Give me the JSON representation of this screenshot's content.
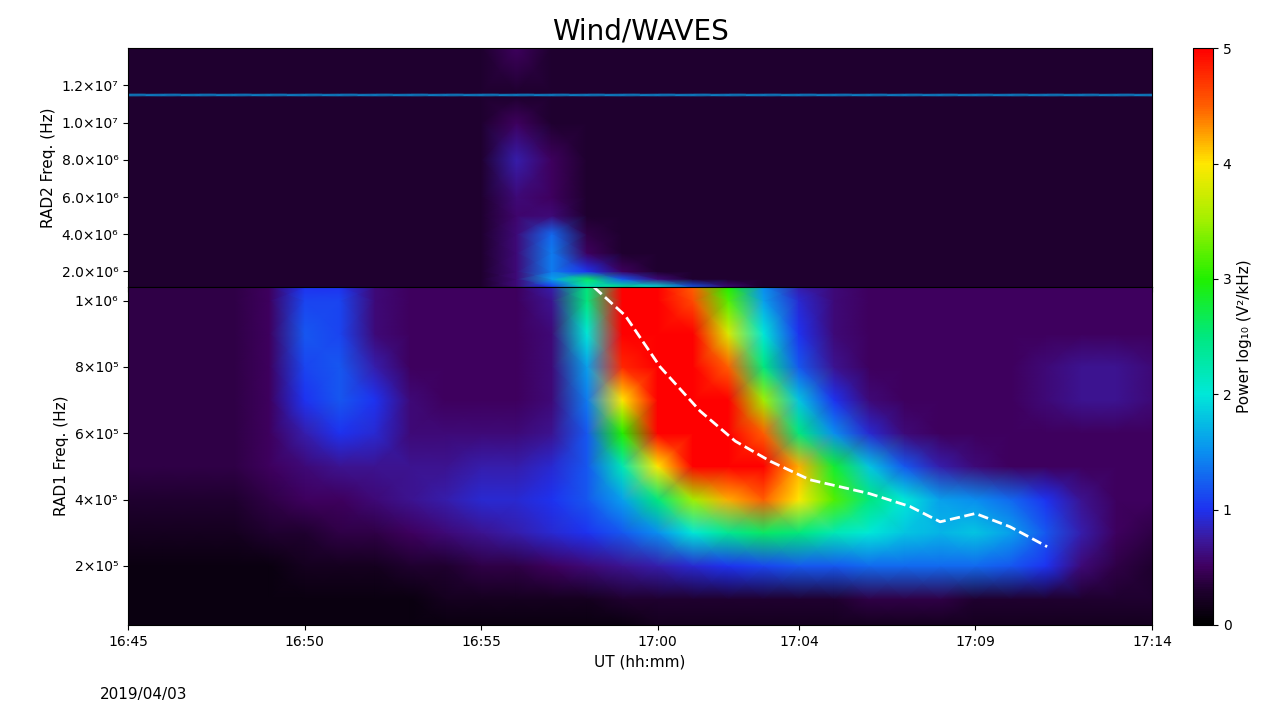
{
  "chart_data": {
    "type": "heatmap",
    "title": "Wind/WAVES",
    "x_label": "UT (hh:mm)",
    "annotations": [
      "2019/04/03"
    ],
    "xlim": [
      1005,
      1034
    ],
    "xticks": [
      {
        "value": 1005,
        "label": "16:45"
      },
      {
        "value": 1010,
        "label": "16:50"
      },
      {
        "value": 1015,
        "label": "16:55"
      },
      {
        "value": 1020,
        "label": "17:00"
      },
      {
        "value": 1024,
        "label": "17:04"
      },
      {
        "value": 1029,
        "label": "17:09"
      },
      {
        "value": 1034,
        "label": "17:14"
      }
    ],
    "x": [
      1005,
      1006,
      1007,
      1008,
      1009,
      1010,
      1011,
      1012,
      1013,
      1014,
      1015,
      1016,
      1017,
      1018,
      1019,
      1020,
      1021,
      1022,
      1023,
      1024,
      1025,
      1026,
      1027,
      1028,
      1029,
      1030,
      1031,
      1032,
      1033,
      1034
    ],
    "colorbar": {
      "label": "Power log₁₀ (V²/kHz)",
      "range": [
        0,
        5
      ],
      "ticks": [
        0,
        1,
        2,
        3,
        4,
        5
      ]
    },
    "panels": [
      {
        "y_label": "RAD2 Freq. (Hz)",
        "ylim": [
          1150000,
          14000000
        ],
        "yticks": [
          {
            "value": 2000000,
            "label": "2.0×10⁶"
          },
          {
            "value": 4000000,
            "label": "4.0×10⁶"
          },
          {
            "value": 6000000,
            "label": "6.0×10⁶"
          },
          {
            "value": 8000000,
            "label": "8.0×10⁶"
          },
          {
            "value": 10000000,
            "label": "1.0×10⁷"
          },
          {
            "value": 12000000,
            "label": "1.2×10⁷"
          }
        ],
        "y": [
          1150000,
          1600000,
          2000000,
          3000000,
          4000000,
          5000000,
          6000000,
          8000000,
          10000000,
          11400000,
          11500000,
          11600000,
          14000000
        ],
        "cells": [
          [
            0.3,
            0.3,
            0.3,
            0.3,
            0.3,
            0.3,
            0.3,
            0.3,
            0.3,
            0.3,
            0.3,
            0.6,
            1.0,
            2.2,
            2.4,
            2.0,
            1.2,
            0.6,
            0.3,
            0.3,
            0.3,
            0.3,
            0.3,
            0.3,
            0.3,
            0.3,
            0.3,
            0.3,
            0.3,
            0.3
          ],
          [
            0.3,
            0.3,
            0.3,
            0.3,
            0.3,
            0.3,
            0.3,
            0.3,
            0.3,
            0.3,
            0.3,
            0.6,
            1.6,
            2.6,
            1.2,
            0.6,
            0.3,
            0.3,
            0.3,
            0.3,
            0.3,
            0.3,
            0.3,
            0.3,
            0.3,
            0.3,
            0.3,
            0.3,
            0.3,
            0.3
          ],
          [
            0.3,
            0.3,
            0.3,
            0.3,
            0.3,
            0.3,
            0.3,
            0.3,
            0.3,
            0.3,
            0.3,
            0.6,
            1.4,
            1.0,
            0.5,
            0.3,
            0.3,
            0.3,
            0.3,
            0.3,
            0.3,
            0.3,
            0.3,
            0.3,
            0.3,
            0.3,
            0.3,
            0.3,
            0.3,
            0.3
          ],
          [
            0.3,
            0.3,
            0.3,
            0.3,
            0.3,
            0.3,
            0.3,
            0.3,
            0.3,
            0.3,
            0.3,
            0.6,
            1.4,
            0.5,
            0.3,
            0.3,
            0.3,
            0.3,
            0.3,
            0.3,
            0.3,
            0.3,
            0.3,
            0.3,
            0.3,
            0.3,
            0.3,
            0.3,
            0.3,
            0.3
          ],
          [
            0.3,
            0.3,
            0.3,
            0.3,
            0.3,
            0.3,
            0.3,
            0.3,
            0.3,
            0.3,
            0.3,
            0.6,
            1.3,
            0.4,
            0.3,
            0.3,
            0.3,
            0.3,
            0.3,
            0.3,
            0.3,
            0.3,
            0.3,
            0.3,
            0.3,
            0.3,
            0.3,
            0.3,
            0.3,
            0.3
          ],
          [
            0.3,
            0.3,
            0.3,
            0.3,
            0.3,
            0.3,
            0.3,
            0.3,
            0.3,
            0.3,
            0.3,
            0.55,
            0.6,
            0.3,
            0.3,
            0.3,
            0.3,
            0.3,
            0.3,
            0.3,
            0.3,
            0.3,
            0.3,
            0.3,
            0.3,
            0.3,
            0.3,
            0.3,
            0.3,
            0.3
          ],
          [
            0.3,
            0.3,
            0.3,
            0.3,
            0.3,
            0.3,
            0.3,
            0.3,
            0.3,
            0.3,
            0.3,
            0.6,
            0.5,
            0.3,
            0.3,
            0.3,
            0.3,
            0.3,
            0.3,
            0.3,
            0.3,
            0.3,
            0.3,
            0.3,
            0.3,
            0.3,
            0.3,
            0.3,
            0.3,
            0.3
          ],
          [
            0.3,
            0.3,
            0.3,
            0.3,
            0.3,
            0.3,
            0.3,
            0.3,
            0.3,
            0.3,
            0.3,
            0.8,
            0.5,
            0.3,
            0.3,
            0.3,
            0.3,
            0.3,
            0.3,
            0.3,
            0.3,
            0.3,
            0.3,
            0.3,
            0.3,
            0.3,
            0.3,
            0.3,
            0.3,
            0.3
          ],
          [
            0.3,
            0.3,
            0.3,
            0.3,
            0.3,
            0.3,
            0.3,
            0.3,
            0.3,
            0.3,
            0.3,
            0.5,
            0.3,
            0.3,
            0.3,
            0.3,
            0.3,
            0.3,
            0.3,
            0.3,
            0.3,
            0.3,
            0.3,
            0.3,
            0.3,
            0.3,
            0.3,
            0.3,
            0.3,
            0.3
          ],
          [
            0.3,
            0.3,
            0.3,
            0.3,
            0.3,
            0.3,
            0.3,
            0.3,
            0.3,
            0.3,
            0.3,
            0.3,
            0.3,
            0.3,
            0.3,
            0.3,
            0.3,
            0.3,
            0.3,
            0.3,
            0.3,
            0.3,
            0.3,
            0.3,
            0.3,
            0.3,
            0.3,
            0.3,
            0.3,
            0.3
          ],
          [
            1.6,
            1.6,
            1.6,
            1.6,
            1.6,
            1.6,
            1.6,
            1.6,
            1.6,
            1.6,
            1.6,
            1.6,
            1.6,
            1.6,
            1.6,
            1.6,
            1.6,
            1.6,
            1.6,
            1.6,
            1.6,
            1.6,
            1.6,
            1.6,
            1.6,
            1.6,
            1.6,
            1.6,
            1.6,
            1.6
          ],
          [
            0.3,
            0.3,
            0.3,
            0.3,
            0.3,
            0.3,
            0.3,
            0.3,
            0.3,
            0.3,
            0.3,
            0.3,
            0.3,
            0.3,
            0.3,
            0.3,
            0.3,
            0.3,
            0.3,
            0.3,
            0.3,
            0.3,
            0.3,
            0.3,
            0.3,
            0.3,
            0.3,
            0.3,
            0.3,
            0.3
          ],
          [
            0.3,
            0.3,
            0.3,
            0.3,
            0.3,
            0.3,
            0.3,
            0.3,
            0.3,
            0.3,
            0.3,
            0.5,
            0.3,
            0.3,
            0.3,
            0.3,
            0.3,
            0.3,
            0.3,
            0.3,
            0.3,
            0.3,
            0.3,
            0.3,
            0.3,
            0.3,
            0.3,
            0.3,
            0.3,
            0.3
          ]
        ]
      },
      {
        "y_label": "RAD1 Freq. (Hz)",
        "ylim": [
          22000,
          1040000
        ],
        "yticks": [
          {
            "value": 200000,
            "label": "2×10⁵"
          },
          {
            "value": 400000,
            "label": "4×10⁵"
          },
          {
            "value": 600000,
            "label": "6×10⁵"
          },
          {
            "value": 800000,
            "label": "8×10⁵"
          },
          {
            "value": 1000000,
            "label": "1×10⁶"
          }
        ],
        "y": [
          22000,
          100000,
          200000,
          300000,
          400000,
          500000,
          600000,
          700000,
          800000,
          900000,
          1000000,
          1040000
        ],
        "cells": [
          [
            0.1,
            0.1,
            0.1,
            0.1,
            0.1,
            0.1,
            0.1,
            0.1,
            0.1,
            0.1,
            0.1,
            0.1,
            0.1,
            0.1,
            0.1,
            0.2,
            0.2,
            0.2,
            0.2,
            0.2,
            0.2,
            0.2,
            0.2,
            0.2,
            0.2,
            0.2,
            0.2,
            0.2,
            0.2,
            0.2
          ],
          [
            0.1,
            0.1,
            0.1,
            0.1,
            0.1,
            0.1,
            0.1,
            0.1,
            0.1,
            0.2,
            0.2,
            0.2,
            0.2,
            0.2,
            0.3,
            0.3,
            0.3,
            0.3,
            0.3,
            0.3,
            0.3,
            0.4,
            0.4,
            0.4,
            0.3,
            0.3,
            0.3,
            0.3,
            0.3,
            0.3
          ],
          [
            0.1,
            0.1,
            0.1,
            0.1,
            0.1,
            0.2,
            0.2,
            0.2,
            0.3,
            0.3,
            0.4,
            0.4,
            0.5,
            0.6,
            0.7,
            0.8,
            0.9,
            1.0,
            1.1,
            1.2,
            1.2,
            1.3,
            1.3,
            1.3,
            1.3,
            1.2,
            1.0,
            0.6,
            0.4,
            0.3
          ],
          [
            0.2,
            0.2,
            0.2,
            0.2,
            0.3,
            0.3,
            0.4,
            0.4,
            0.5,
            0.6,
            0.7,
            0.8,
            0.9,
            1.0,
            1.2,
            1.5,
            2.0,
            2.4,
            2.6,
            2.5,
            2.2,
            2.0,
            1.8,
            1.7,
            1.8,
            1.6,
            1.2,
            0.8,
            0.5,
            0.4
          ],
          [
            0.3,
            0.3,
            0.3,
            0.3,
            0.4,
            0.5,
            0.5,
            0.6,
            0.7,
            0.8,
            0.9,
            0.9,
            1.0,
            1.2,
            1.6,
            2.5,
            3.5,
            4.2,
            4.5,
            4.0,
            3.2,
            2.5,
            2.0,
            1.6,
            1.5,
            1.3,
            1.0,
            0.7,
            0.5,
            0.5
          ],
          [
            0.4,
            0.4,
            0.4,
            0.4,
            0.5,
            0.6,
            0.7,
            0.7,
            0.7,
            0.7,
            0.8,
            0.8,
            0.9,
            1.2,
            2.2,
            4.0,
            5.0,
            5.0,
            5.0,
            4.2,
            2.8,
            1.8,
            1.2,
            0.8,
            0.6,
            0.5,
            0.5,
            0.5,
            0.5,
            0.5
          ],
          [
            0.4,
            0.4,
            0.4,
            0.4,
            0.5,
            0.8,
            1.0,
            0.9,
            0.6,
            0.6,
            0.6,
            0.6,
            0.7,
            1.2,
            3.0,
            5.0,
            5.0,
            5.0,
            4.5,
            2.5,
            1.5,
            0.9,
            0.6,
            0.5,
            0.5,
            0.5,
            0.5,
            0.5,
            0.5,
            0.5
          ],
          [
            0.4,
            0.4,
            0.4,
            0.4,
            0.5,
            1.0,
            1.2,
            1.0,
            0.6,
            0.5,
            0.5,
            0.5,
            0.6,
            1.4,
            4.0,
            5.0,
            5.0,
            5.0,
            3.5,
            1.8,
            1.0,
            0.6,
            0.5,
            0.5,
            0.5,
            0.5,
            0.6,
            0.7,
            0.7,
            0.6
          ],
          [
            0.4,
            0.4,
            0.4,
            0.4,
            0.5,
            1.1,
            1.2,
            0.8,
            0.5,
            0.5,
            0.5,
            0.5,
            0.6,
            1.6,
            4.8,
            5.0,
            5.0,
            4.5,
            2.5,
            1.2,
            0.7,
            0.5,
            0.5,
            0.5,
            0.5,
            0.5,
            0.6,
            0.7,
            0.7,
            0.6
          ],
          [
            0.4,
            0.4,
            0.4,
            0.4,
            0.5,
            1.2,
            1.1,
            0.6,
            0.5,
            0.5,
            0.5,
            0.5,
            0.6,
            2.0,
            5.0,
            5.0,
            5.0,
            3.8,
            2.0,
            1.0,
            0.6,
            0.5,
            0.5,
            0.5,
            0.5,
            0.5,
            0.5,
            0.5,
            0.5,
            0.5
          ],
          [
            0.4,
            0.4,
            0.4,
            0.4,
            0.5,
            1.1,
            1.1,
            0.6,
            0.5,
            0.5,
            0.5,
            0.5,
            0.7,
            2.5,
            5.0,
            5.0,
            4.6,
            3.2,
            1.6,
            0.9,
            0.6,
            0.5,
            0.5,
            0.5,
            0.5,
            0.5,
            0.5,
            0.5,
            0.5,
            0.5
          ],
          [
            0.4,
            0.4,
            0.4,
            0.4,
            0.5,
            1.0,
            1.0,
            0.6,
            0.5,
            0.5,
            0.5,
            0.5,
            0.8,
            2.5,
            5.0,
            5.0,
            4.5,
            3.0,
            1.5,
            0.8,
            0.6,
            0.5,
            0.5,
            0.5,
            0.5,
            0.5,
            0.5,
            0.5,
            0.5,
            0.5
          ]
        ],
        "series": [
          {
            "type": "line",
            "color": "#ffffff",
            "line_style": "dashed",
            "x": [
              1018.2,
              1019.08,
              1020.07,
              1021.2,
              1022.2,
              1023.2,
              1024.3,
              1026.0,
              1027.15,
              1028.0,
              1029.0,
              1029.98,
              1031.03
            ],
            "values": [
              1040000,
              955000,
              800000,
              667000,
              576000,
              515000,
              460000,
              418000,
              379000,
              333000,
              358000,
              318000,
              258000
            ]
          }
        ]
      }
    ]
  }
}
